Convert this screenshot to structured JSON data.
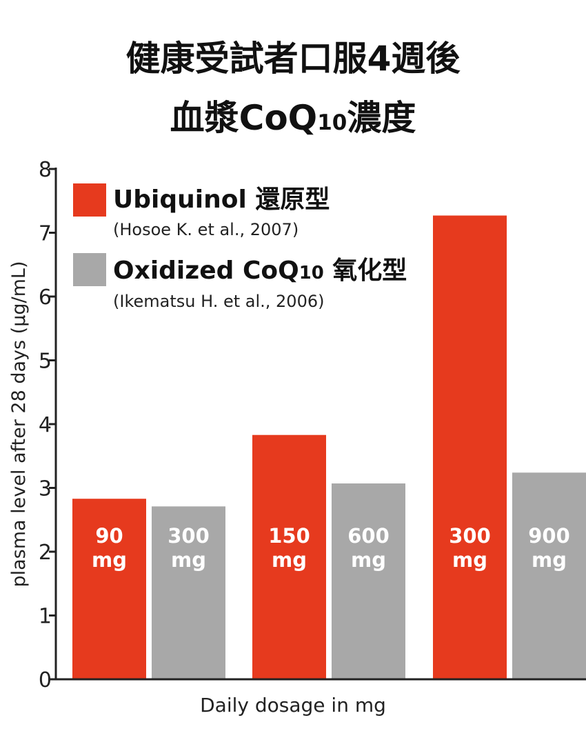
{
  "title_line1": "健康受試者口服4週後",
  "title_line2_main": "血漿CoQ",
  "title_line2_sub": "10",
  "title_line2_end": "濃度",
  "colors": {
    "ubiquinol": "#e63a1e",
    "oxidized": "#a8a8a8",
    "axis": "#222222"
  },
  "legend": {
    "ubiquinol": {
      "name": "Ubiquinol 還原型",
      "citation": "(Hosoe K. et al., 2007)"
    },
    "oxidized": {
      "name_main": "Oxidized CoQ",
      "name_sub": "10",
      "name_end": " 氧化型",
      "citation": "(Ikematsu H. et al., 2006)"
    }
  },
  "chart_data": {
    "type": "bar",
    "ylabel": "plasma level after 28 days (μg/mL)",
    "xlabel": "Daily dosage in mg",
    "ylim": [
      0,
      8
    ],
    "yticks": [
      "0",
      "1",
      "2",
      "3",
      "4",
      "5",
      "6",
      "7",
      "8"
    ],
    "bars": [
      {
        "series": "ubiquinol",
        "dose": "90",
        "unit": "mg",
        "value": 2.83
      },
      {
        "series": "oxidized",
        "dose": "300",
        "unit": "mg",
        "value": 2.71
      },
      {
        "series": "ubiquinol",
        "dose": "150",
        "unit": "mg",
        "value": 3.83
      },
      {
        "series": "oxidized",
        "dose": "600",
        "unit": "mg",
        "value": 3.07
      },
      {
        "series": "ubiquinol",
        "dose": "300",
        "unit": "mg",
        "value": 7.27
      },
      {
        "series": "oxidized",
        "dose": "900",
        "unit": "mg",
        "value": 3.24
      }
    ]
  }
}
